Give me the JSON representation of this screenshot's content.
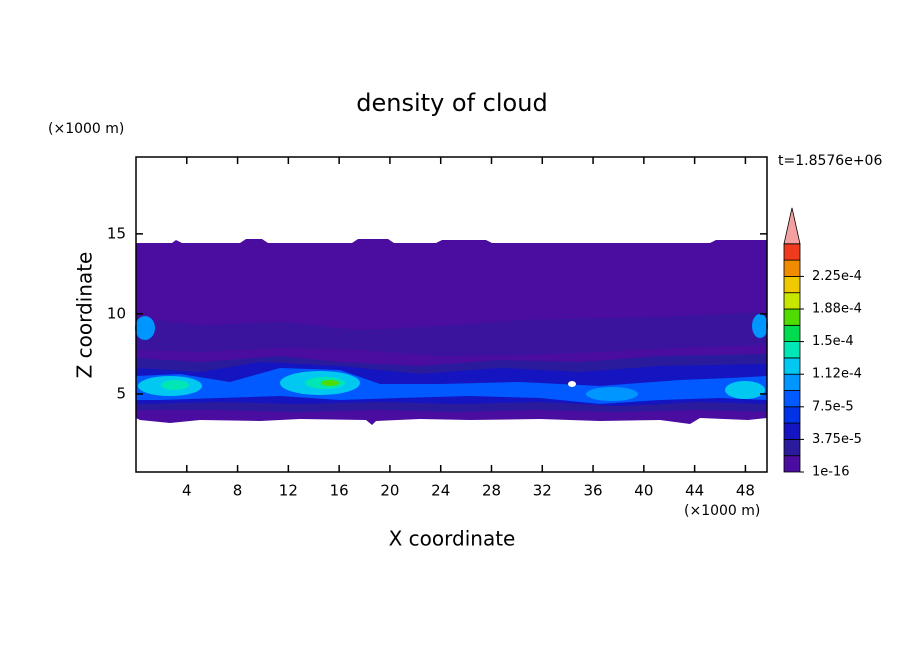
{
  "chart_data": {
    "type": "contour",
    "title": "density of cloud",
    "time_label": "t=1.8576e+06",
    "x_label": "X coordinate",
    "y_label": "Z coordinate",
    "x_unit": "(×1000 m)",
    "y_unit": "(×1000 m)",
    "xlim": [
      0,
      49.7
    ],
    "ylim": [
      0.125,
      19.8
    ],
    "xticks": [
      4,
      8,
      12,
      16,
      20,
      24,
      28,
      32,
      36,
      40,
      44,
      48
    ],
    "yticks": [
      5,
      10,
      15
    ],
    "colorbar": {
      "levels": [
        1e-16,
        {
          "value": 3.75e-05,
          "label": "3.75e-5"
        },
        {
          "value": 7.5e-05,
          "label": "7.5e-5"
        },
        {
          "value": 0.000112,
          "label": "1.12e-4"
        },
        {
          "value": 0.00015,
          "label": "1.5e-4"
        },
        {
          "value": 0.000188,
          "label": "1.88e-4"
        },
        {
          "value": 0.000225,
          "label": "2.25e-4"
        }
      ],
      "colors": [
        "#4b0ca0",
        "#2a1a9c",
        "#1414c0",
        "#0032e6",
        "#005aff",
        "#0096ff",
        "#00c8f0",
        "#00e6b4",
        "#00dc50",
        "#50dc00",
        "#c8e600",
        "#f0c800",
        "#f08c00",
        "#f03c1e"
      ],
      "overflow_color": "#f5a0a0"
    }
  }
}
